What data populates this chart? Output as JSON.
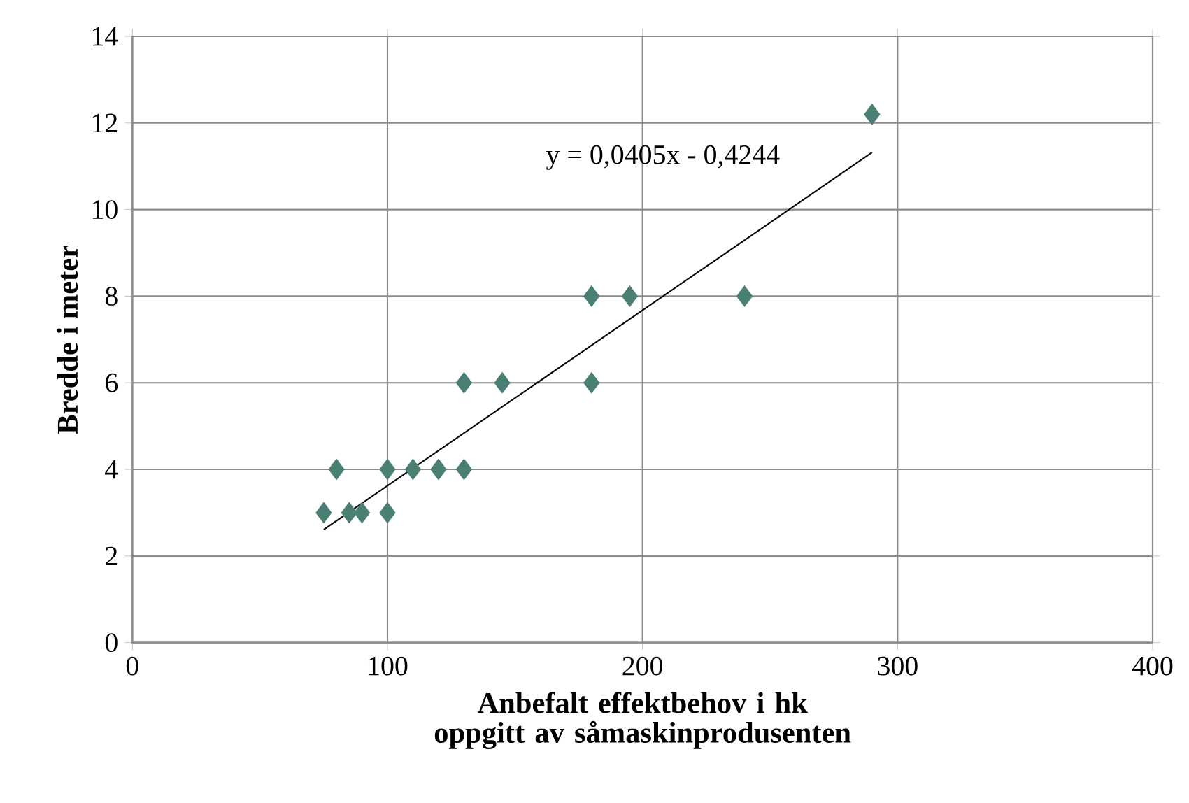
{
  "chart_data": {
    "type": "scatter",
    "xlabel": "Anbefalt effektbehov i hk oppgitt av såmaskinprodusenten",
    "ylabel": "Bredde i meter",
    "xlim": [
      0,
      400
    ],
    "ylim": [
      0,
      14
    ],
    "xticks": [
      0,
      100,
      200,
      300,
      400
    ],
    "yticks": [
      0,
      2,
      4,
      6,
      8,
      10,
      12,
      14
    ],
    "grid": true,
    "marker": "diamond",
    "series": [
      {
        "color": "#4a7f74",
        "x": [
          75,
          80,
          85,
          90,
          100,
          100,
          110,
          120,
          130,
          130,
          145,
          180,
          180,
          195,
          240,
          290
        ],
        "values": [
          3,
          4,
          3,
          3,
          4,
          3,
          4,
          4,
          4,
          6,
          6,
          6,
          8,
          8,
          8,
          12.2
        ]
      },
      {
        "type": "line",
        "color": "#000000",
        "line_style": "solid",
        "marker": "none",
        "x": [
          75,
          290
        ],
        "values": [
          2.61,
          11.32
        ]
      }
    ],
    "annotations": [
      "y = 0,0405x - 0,4244"
    ]
  }
}
